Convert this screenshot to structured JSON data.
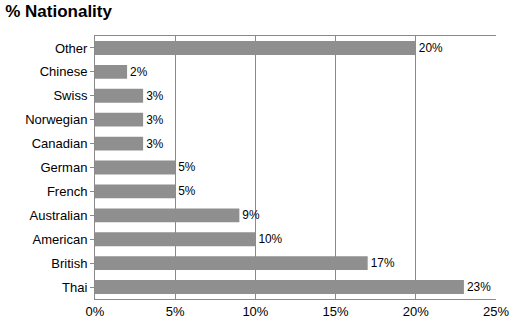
{
  "chart_data": {
    "type": "bar",
    "title": "% Nationality",
    "orientation": "horizontal",
    "categories": [
      "Thai",
      "British",
      "American",
      "Australian",
      "French",
      "German",
      "Canadian",
      "Norwegian",
      "Swiss",
      "Chinese",
      "Other"
    ],
    "values": [
      23,
      17,
      10,
      9,
      5,
      5,
      3,
      3,
      3,
      2,
      20
    ],
    "value_labels": [
      "23%",
      "17%",
      "10%",
      "9%",
      "5%",
      "5%",
      "3%",
      "3%",
      "3%",
      "2%",
      "20%"
    ],
    "data_labels": true,
    "color": "#8f8f8f",
    "xlim": [
      0,
      25
    ],
    "xticks": [
      {
        "value": 0,
        "label": "0%"
      },
      {
        "value": 5,
        "label": "5%"
      },
      {
        "value": 10,
        "label": "10%"
      },
      {
        "value": 15,
        "label": "15%"
      },
      {
        "value": 20,
        "label": "20%"
      },
      {
        "value": 25,
        "label": "25%"
      }
    ],
    "grid": true
  }
}
